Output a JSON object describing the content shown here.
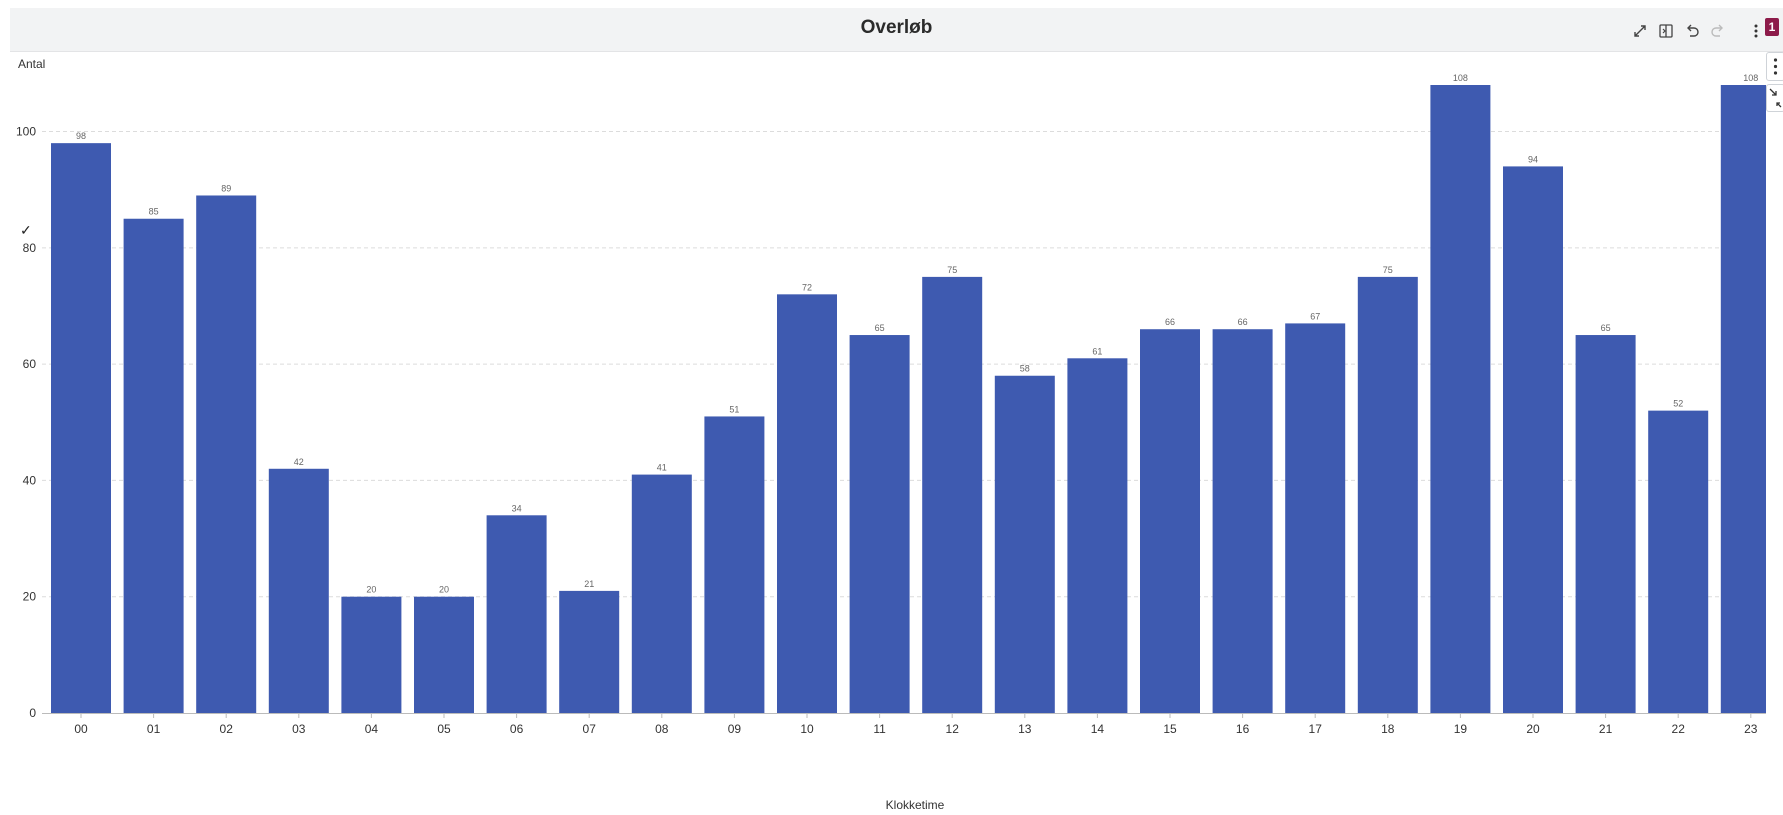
{
  "chart_title": "Overløb",
  "toolbar": {
    "icons": [
      "expand-icon",
      "split-view-icon",
      "undo-icon",
      "redo-icon",
      "more-options-icon"
    ],
    "badge_count": "1",
    "badge_color": "#8d1b4a"
  },
  "side_controls": [
    "more-options-icon",
    "collapse-icon"
  ],
  "check_mark": "✓",
  "chart_data": {
    "type": "bar",
    "title": "Overløb",
    "xlabel": "Klokketime",
    "ylabel": "Antal",
    "categories": [
      "00",
      "01",
      "02",
      "03",
      "04",
      "05",
      "06",
      "07",
      "08",
      "09",
      "10",
      "11",
      "12",
      "13",
      "14",
      "15",
      "16",
      "17",
      "18",
      "19",
      "20",
      "21",
      "22",
      "23"
    ],
    "values": [
      98,
      85,
      89,
      42,
      20,
      20,
      34,
      21,
      41,
      51,
      72,
      65,
      75,
      58,
      61,
      66,
      66,
      67,
      75,
      108,
      94,
      65,
      52,
      108
    ],
    "ylim": [
      0,
      110
    ],
    "yticks": [
      0,
      20,
      40,
      60,
      80,
      100
    ],
    "grid": true,
    "bar_color": "#3e5ab0",
    "data_labels": true
  }
}
